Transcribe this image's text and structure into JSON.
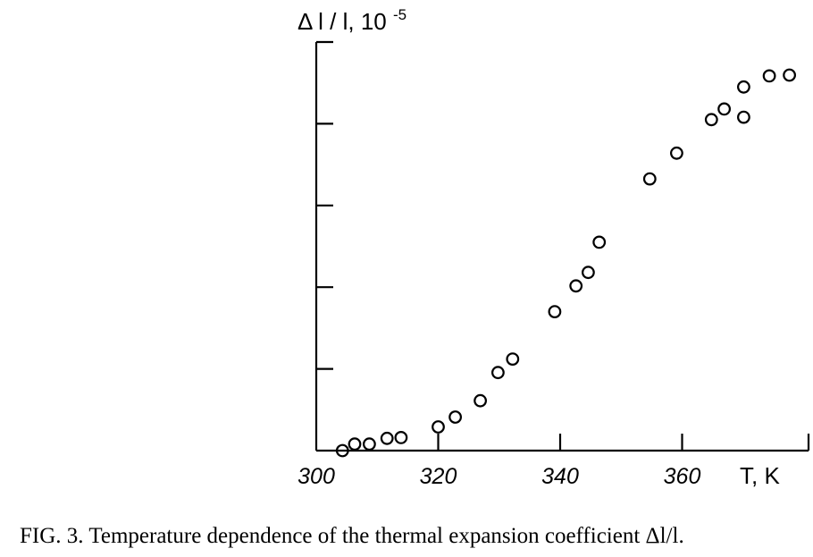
{
  "chart_data": {
    "type": "scatter",
    "title": "",
    "ylabel": "Δ l / l, 10",
    "ylabel_exponent": "-5",
    "xlabel": "T, K",
    "xlim": [
      300,
      374
    ],
    "ylim": [
      0,
      10
    ],
    "x_ticks": [
      300,
      320,
      340,
      360
    ],
    "y_ticks": [
      0,
      2,
      4,
      6,
      8,
      10
    ],
    "marker": "open-circle",
    "grid": false,
    "points": [
      {
        "x": 304.3,
        "y": 0.0
      },
      {
        "x": 306.3,
        "y": 0.16
      },
      {
        "x": 308.7,
        "y": 0.16
      },
      {
        "x": 311.6,
        "y": 0.3
      },
      {
        "x": 313.9,
        "y": 0.32
      },
      {
        "x": 320.0,
        "y": 0.58
      },
      {
        "x": 322.8,
        "y": 0.82
      },
      {
        "x": 326.9,
        "y": 1.22
      },
      {
        "x": 329.8,
        "y": 1.91
      },
      {
        "x": 332.2,
        "y": 2.24
      },
      {
        "x": 339.1,
        "y": 3.4
      },
      {
        "x": 342.6,
        "y": 4.03
      },
      {
        "x": 344.6,
        "y": 4.36
      },
      {
        "x": 346.4,
        "y": 5.1
      },
      {
        "x": 354.7,
        "y": 6.65
      },
      {
        "x": 359.1,
        "y": 7.28
      },
      {
        "x": 364.8,
        "y": 8.1
      },
      {
        "x": 366.9,
        "y": 8.36
      },
      {
        "x": 370.1,
        "y": 8.16
      },
      {
        "x": 370.1,
        "y": 8.9
      },
      {
        "x": 374.3,
        "y": 9.17
      },
      {
        "x": 377.6,
        "y": 9.19
      }
    ]
  },
  "caption": {
    "text": "FIG. 3.  Temperature dependence of the thermal expansion coefficient Δl/l."
  }
}
